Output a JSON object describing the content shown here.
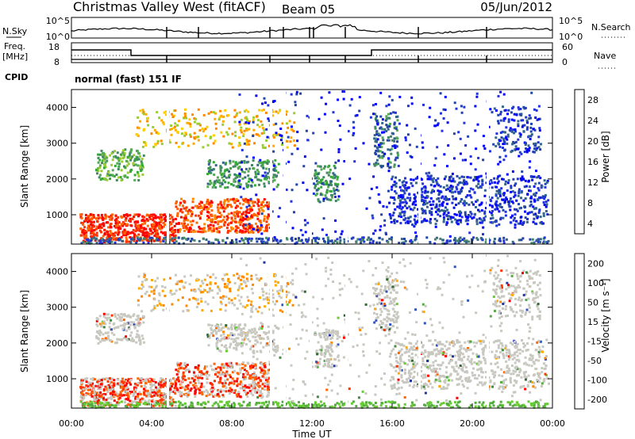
{
  "header": {
    "station": "Christmas Valley West (fitACF)",
    "beam": "Beam 05",
    "date": "05/Jun/2012"
  },
  "noise_panel": {
    "left_label": "N.Sky",
    "left_ticks": [
      "10^5",
      "10^0"
    ],
    "right_label": "N.Search",
    "right_ticks": [
      "10^5",
      "10^0"
    ]
  },
  "freq_panel": {
    "left_label_1": "Freq.",
    "left_label_2": "[MHz]",
    "left_ticks": [
      "18",
      "8"
    ],
    "right_label": "Nave",
    "right_ticks": [
      "60",
      "0"
    ],
    "cpid_label": "CPID",
    "cpid_text": "normal (fast) 151 IF"
  },
  "chart_data": [
    {
      "type": "heatmap",
      "title": "",
      "xlabel": "",
      "ylabel": "Slant Range [km]",
      "x_range": [
        "00:00",
        "00:00"
      ],
      "ylim": [
        180,
        4500
      ],
      "y_ticks": [
        "1000",
        "2000",
        "3000",
        "4000"
      ],
      "colorbar": {
        "label": "Power [dB]",
        "ticks": [
          "28",
          "24",
          "20",
          "16",
          "12",
          "8",
          "4"
        ],
        "colors": [
          "#0000ff",
          "#2233dd",
          "#2244aa",
          "#336688",
          "#448866",
          "#55aa55",
          "#33aa33",
          "#99cc33",
          "#ffcc00",
          "#ffaa00",
          "#ff8800",
          "#ff6600",
          "#ff3300",
          "#ff0000"
        ]
      }
    },
    {
      "type": "heatmap",
      "title": "",
      "xlabel": "Time UT",
      "ylabel": "Slant Range [km]",
      "x_range": [
        "00:00",
        "00:00"
      ],
      "x_ticks": [
        "00:00",
        "04:00",
        "08:00",
        "12:00",
        "16:00",
        "20:00",
        "00:00"
      ],
      "ylim": [
        180,
        4500
      ],
      "y_ticks": [
        "1000",
        "2000",
        "3000",
        "4000"
      ],
      "colorbar": {
        "label": "Velocity [m s⁻¹]",
        "ticks": [
          "200",
          "100",
          "50",
          "15",
          "-15",
          "-50",
          "-100",
          "-200"
        ],
        "colors": [
          "#2233aa",
          "#3355bb",
          "#336633",
          "#448844",
          "#55aa44",
          "#66cc33",
          "#c8c8c0",
          "#c8c8c0",
          "#c8c8c0",
          "#ffaa00",
          "#ff8800",
          "#ff6600",
          "#ff3300",
          "#ff0000"
        ]
      }
    }
  ]
}
